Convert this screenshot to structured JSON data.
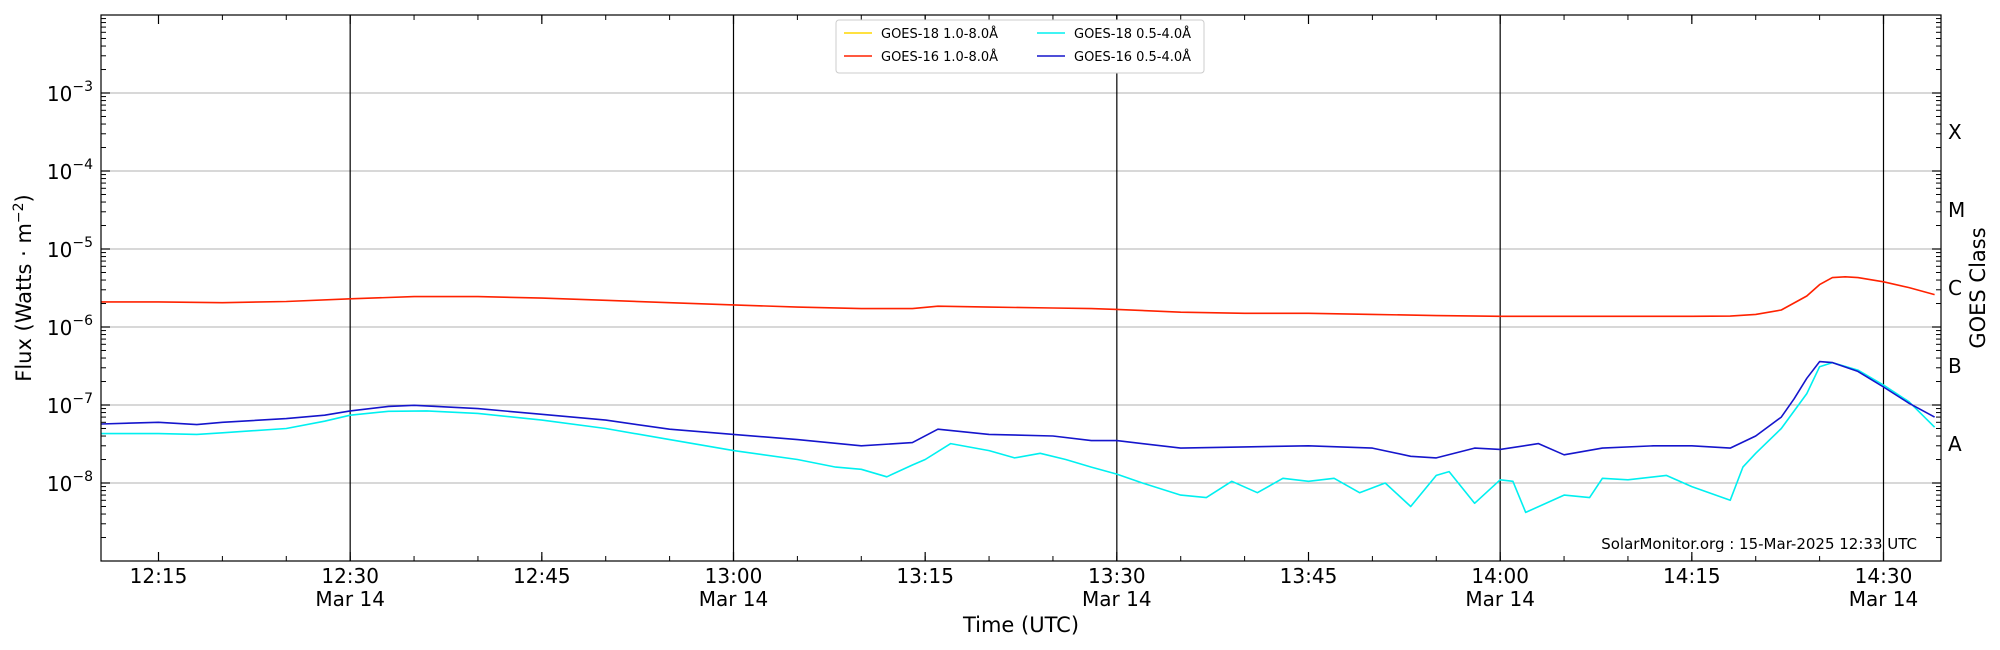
{
  "chart_data": {
    "type": "line",
    "xlabel": "Time (UTC)",
    "ylabel_prefix": "Flux (Watts · m",
    "ylabel_sup": "−2",
    "ylabel_suffix": ")",
    "y2label": "GOES Class",
    "y_scale": "log",
    "ylim": [
      1e-09,
      0.01
    ],
    "xlim": [
      "12:10:30",
      "14:34:30"
    ],
    "grid": "horizontal at decades",
    "legend_position": "top-center",
    "credit": "SolarMonitor.org : 15-Mar-2025 12:33 UTC",
    "x_ticks": [
      {
        "time": "12:15",
        "line1": "12:15",
        "line2": ""
      },
      {
        "time": "12:30",
        "line1": "12:30",
        "line2": "Mar 14"
      },
      {
        "time": "12:45",
        "line1": "12:45",
        "line2": ""
      },
      {
        "time": "13:00",
        "line1": "13:00",
        "line2": "Mar 14"
      },
      {
        "time": "13:15",
        "line1": "13:15",
        "line2": ""
      },
      {
        "time": "13:30",
        "line1": "13:30",
        "line2": "Mar 14"
      },
      {
        "time": "13:45",
        "line1": "13:45",
        "line2": ""
      },
      {
        "time": "14:00",
        "line1": "14:00",
        "line2": "Mar 14"
      },
      {
        "time": "14:15",
        "line1": "14:15",
        "line2": ""
      },
      {
        "time": "14:30",
        "line1": "14:30",
        "line2": "Mar 14"
      }
    ],
    "vlines": [
      "12:30",
      "13:00",
      "13:30",
      "14:00",
      "14:30"
    ],
    "y_ticks": [
      {
        "value": 1e-08,
        "label": "10",
        "exp": "−8"
      },
      {
        "value": 1e-07,
        "label": "10",
        "exp": "−7"
      },
      {
        "value": 1e-06,
        "label": "10",
        "exp": "−6"
      },
      {
        "value": 1e-05,
        "label": "10",
        "exp": "−5"
      },
      {
        "value": 0.0001,
        "label": "10",
        "exp": "−4"
      },
      {
        "value": 0.001,
        "label": "10",
        "exp": "−3"
      }
    ],
    "goes_classes": [
      {
        "label": "A",
        "value": 1e-08
      },
      {
        "label": "B",
        "value": 1e-07
      },
      {
        "label": "C",
        "value": 1e-06
      },
      {
        "label": "M",
        "value": 1e-05
      },
      {
        "label": "X",
        "value": 0.0001
      }
    ],
    "series": [
      {
        "name": "GOES-18 1.0-8.0Å",
        "color": "#ffd700",
        "points": []
      },
      {
        "name": "GOES-16 1.0-8.0Å",
        "color": "#ff2200",
        "points": [
          [
            "12:10:30",
            2.1e-06
          ],
          [
            "12:15",
            2.1e-06
          ],
          [
            "12:20",
            2.05e-06
          ],
          [
            "12:25",
            2.12e-06
          ],
          [
            "12:30",
            2.3e-06
          ],
          [
            "12:35",
            2.45e-06
          ],
          [
            "12:40",
            2.45e-06
          ],
          [
            "12:45",
            2.35e-06
          ],
          [
            "12:50",
            2.2e-06
          ],
          [
            "12:55",
            2.05e-06
          ],
          [
            "13:00",
            1.92e-06
          ],
          [
            "13:05",
            1.8e-06
          ],
          [
            "13:10",
            1.72e-06
          ],
          [
            "13:14",
            1.72e-06
          ],
          [
            "13:16",
            1.85e-06
          ],
          [
            "13:20",
            1.8e-06
          ],
          [
            "13:25",
            1.75e-06
          ],
          [
            "13:28",
            1.72e-06
          ],
          [
            "13:30",
            1.68e-06
          ],
          [
            "13:35",
            1.55e-06
          ],
          [
            "13:40",
            1.5e-06
          ],
          [
            "13:45",
            1.5e-06
          ],
          [
            "13:50",
            1.45e-06
          ],
          [
            "13:55",
            1.4e-06
          ],
          [
            "14:00",
            1.37e-06
          ],
          [
            "14:05",
            1.37e-06
          ],
          [
            "14:10",
            1.37e-06
          ],
          [
            "14:15",
            1.37e-06
          ],
          [
            "14:18",
            1.38e-06
          ],
          [
            "14:20",
            1.45e-06
          ],
          [
            "14:22",
            1.65e-06
          ],
          [
            "14:24",
            2.5e-06
          ],
          [
            "14:25",
            3.5e-06
          ],
          [
            "14:26",
            4.3e-06
          ],
          [
            "14:27",
            4.4e-06
          ],
          [
            "14:28",
            4.3e-06
          ],
          [
            "14:30",
            3.8e-06
          ],
          [
            "14:32",
            3.2e-06
          ],
          [
            "14:34",
            2.6e-06
          ]
        ]
      },
      {
        "name": "GOES-18 0.5-4.0Å",
        "color": "#00f0f0",
        "points": [
          [
            "12:10:30",
            4.3e-08
          ],
          [
            "12:15",
            4.3e-08
          ],
          [
            "12:18",
            4.2e-08
          ],
          [
            "12:20",
            4.4e-08
          ],
          [
            "12:25",
            5e-08
          ],
          [
            "12:28",
            6.2e-08
          ],
          [
            "12:30",
            7.4e-08
          ],
          [
            "12:33",
            8.3e-08
          ],
          [
            "12:36",
            8.4e-08
          ],
          [
            "12:40",
            7.8e-08
          ],
          [
            "12:45",
            6.4e-08
          ],
          [
            "12:50",
            5e-08
          ],
          [
            "12:55",
            3.6e-08
          ],
          [
            "13:00",
            2.6e-08
          ],
          [
            "13:05",
            2e-08
          ],
          [
            "13:08",
            1.6e-08
          ],
          [
            "13:10",
            1.5e-08
          ],
          [
            "13:12",
            1.2e-08
          ],
          [
            "13:14",
            1.7e-08
          ],
          [
            "13:15",
            2e-08
          ],
          [
            "13:17",
            3.2e-08
          ],
          [
            "13:20",
            2.6e-08
          ],
          [
            "13:22",
            2.1e-08
          ],
          [
            "13:24",
            2.4e-08
          ],
          [
            "13:26",
            2e-08
          ],
          [
            "13:28",
            1.6e-08
          ],
          [
            "13:30",
            1.3e-08
          ],
          [
            "13:32",
            1e-08
          ],
          [
            "13:35",
            7e-09
          ],
          [
            "13:37",
            6.5e-09
          ],
          [
            "13:39",
            1.05e-08
          ],
          [
            "13:41",
            7.5e-09
          ],
          [
            "13:43",
            1.15e-08
          ],
          [
            "13:45",
            1.05e-08
          ],
          [
            "13:47",
            1.15e-08
          ],
          [
            "13:49",
            7.5e-09
          ],
          [
            "13:51",
            1e-08
          ],
          [
            "13:53",
            5e-09
          ],
          [
            "13:55",
            1.25e-08
          ],
          [
            "13:56",
            1.4e-08
          ],
          [
            "13:58",
            5.5e-09
          ],
          [
            "14:00",
            1.1e-08
          ],
          [
            "14:01",
            1.05e-08
          ],
          [
            "14:02",
            4.2e-09
          ],
          [
            "14:05",
            7e-09
          ],
          [
            "14:07",
            6.5e-09
          ],
          [
            "14:08",
            1.15e-08
          ],
          [
            "14:10",
            1.1e-08
          ],
          [
            "14:13",
            1.25e-08
          ],
          [
            "14:15",
            9e-09
          ],
          [
            "14:18",
            6e-09
          ],
          [
            "14:19",
            1.6e-08
          ],
          [
            "14:20",
            2.4e-08
          ],
          [
            "14:22",
            5e-08
          ],
          [
            "14:24",
            1.4e-07
          ],
          [
            "14:25",
            3.1e-07
          ],
          [
            "14:26",
            3.5e-07
          ],
          [
            "14:28",
            2.8e-07
          ],
          [
            "14:30",
            1.8e-07
          ],
          [
            "14:32",
            1.1e-07
          ],
          [
            "14:34",
            5.2e-08
          ]
        ]
      },
      {
        "name": "GOES-16 0.5-4.0Å",
        "color": "#1515cc",
        "points": [
          [
            "12:10:30",
            5.7e-08
          ],
          [
            "12:15",
            6e-08
          ],
          [
            "12:18",
            5.6e-08
          ],
          [
            "12:20",
            6e-08
          ],
          [
            "12:25",
            6.7e-08
          ],
          [
            "12:28",
            7.4e-08
          ],
          [
            "12:30",
            8.4e-08
          ],
          [
            "12:33",
            9.6e-08
          ],
          [
            "12:35",
            9.9e-08
          ],
          [
            "12:40",
            9e-08
          ],
          [
            "12:45",
            7.6e-08
          ],
          [
            "12:50",
            6.4e-08
          ],
          [
            "12:55",
            4.9e-08
          ],
          [
            "13:00",
            4.2e-08
          ],
          [
            "13:05",
            3.6e-08
          ],
          [
            "13:10",
            3e-08
          ],
          [
            "13:14",
            3.3e-08
          ],
          [
            "13:16",
            4.9e-08
          ],
          [
            "13:20",
            4.2e-08
          ],
          [
            "13:25",
            4e-08
          ],
          [
            "13:28",
            3.5e-08
          ],
          [
            "13:30",
            3.5e-08
          ],
          [
            "13:35",
            2.8e-08
          ],
          [
            "13:40",
            2.9e-08
          ],
          [
            "13:45",
            3e-08
          ],
          [
            "13:50",
            2.8e-08
          ],
          [
            "13:53",
            2.2e-08
          ],
          [
            "13:55",
            2.1e-08
          ],
          [
            "13:58",
            2.8e-08
          ],
          [
            "14:00",
            2.7e-08
          ],
          [
            "14:03",
            3.2e-08
          ],
          [
            "14:05",
            2.3e-08
          ],
          [
            "14:08",
            2.8e-08
          ],
          [
            "14:12",
            3e-08
          ],
          [
            "14:15",
            3e-08
          ],
          [
            "14:18",
            2.8e-08
          ],
          [
            "14:20",
            4e-08
          ],
          [
            "14:22",
            7e-08
          ],
          [
            "14:23",
            1.2e-07
          ],
          [
            "14:24",
            2.2e-07
          ],
          [
            "14:25",
            3.6e-07
          ],
          [
            "14:26",
            3.5e-07
          ],
          [
            "14:28",
            2.7e-07
          ],
          [
            "14:30",
            1.7e-07
          ],
          [
            "14:32",
            1.05e-07
          ],
          [
            "14:34",
            7e-08
          ]
        ]
      }
    ]
  }
}
